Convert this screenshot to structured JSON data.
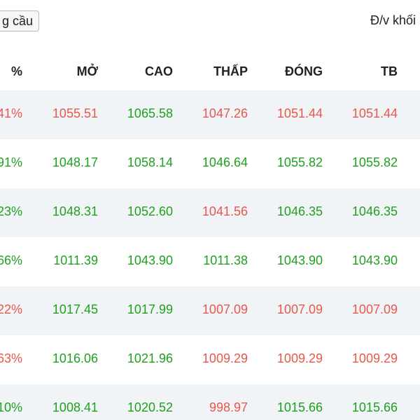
{
  "toolbar": {
    "request_button_label": "g cầu",
    "unit_label": "Đ/v khối"
  },
  "headers": [
    "%",
    "MỞ",
    "CAO",
    "THẤP",
    "ĐÓNG",
    "TB"
  ],
  "rows": [
    {
      "pct": "41%",
      "pct_dir": "down",
      "open": "1055.51",
      "open_dir": "down",
      "high": "1065.58",
      "high_dir": "up",
      "low": "1047.26",
      "low_dir": "down",
      "close": "1051.44",
      "close_dir": "down",
      "avg": "1051.44",
      "avg_dir": "down"
    },
    {
      "pct": "91%",
      "pct_dir": "up",
      "open": "1048.17",
      "open_dir": "up",
      "high": "1058.14",
      "high_dir": "up",
      "low": "1046.64",
      "low_dir": "up",
      "close": "1055.82",
      "close_dir": "up",
      "avg": "1055.82",
      "avg_dir": "up"
    },
    {
      "pct": "23%",
      "pct_dir": "up",
      "open": "1048.31",
      "open_dir": "up",
      "high": "1052.60",
      "high_dir": "up",
      "low": "1041.56",
      "low_dir": "down",
      "close": "1046.35",
      "close_dir": "up",
      "avg": "1046.35",
      "avg_dir": "up"
    },
    {
      "pct": "66%",
      "pct_dir": "up",
      "open": "1011.39",
      "open_dir": "up",
      "high": "1043.90",
      "high_dir": "up",
      "low": "1011.38",
      "low_dir": "up",
      "close": "1043.90",
      "close_dir": "up",
      "avg": "1043.90",
      "avg_dir": "up"
    },
    {
      "pct": "22%",
      "pct_dir": "down",
      "open": "1017.45",
      "open_dir": "up",
      "high": "1017.99",
      "high_dir": "up",
      "low": "1007.09",
      "low_dir": "down",
      "close": "1007.09",
      "close_dir": "down",
      "avg": "1007.09",
      "avg_dir": "down"
    },
    {
      "pct": "63%",
      "pct_dir": "down",
      "open": "1016.06",
      "open_dir": "up",
      "high": "1021.96",
      "high_dir": "up",
      "low": "1009.29",
      "low_dir": "down",
      "close": "1009.29",
      "close_dir": "down",
      "avg": "1009.29",
      "avg_dir": "down"
    },
    {
      "pct": "10%",
      "pct_dir": "up",
      "open": "1008.41",
      "open_dir": "up",
      "high": "1020.52",
      "high_dir": "up",
      "low": "998.97",
      "low_dir": "down",
      "close": "1015.66",
      "close_dir": "up",
      "avg": "1015.66",
      "avg_dir": "up"
    }
  ]
}
